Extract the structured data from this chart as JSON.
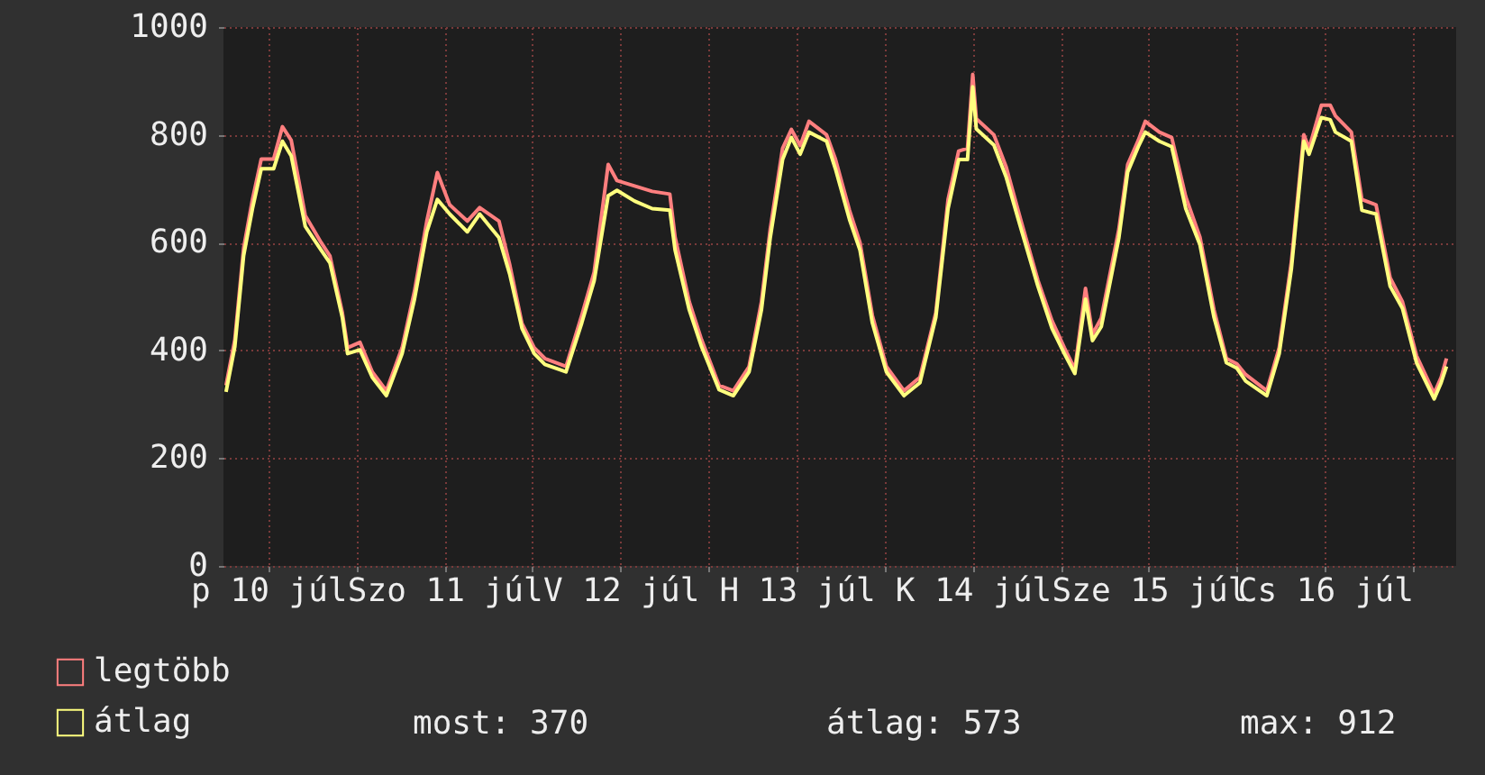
{
  "chart_data": {
    "type": "line",
    "x": [
      "--07-10T06:14",
      "--07-10T07:26",
      "--07-10T08:38",
      "--07-10T09:50",
      "--07-10T11:02",
      "--07-10T12:43",
      "--07-10T13:55",
      "--07-10T15:07",
      "--07-10T17:02",
      "--07-10T19:12",
      "--07-10T20:24",
      "--07-10T22:05",
      "--07-10T22:48",
      "--07-11T00:29",
      "--07-11T02:10",
      "--07-11T04:05",
      "--07-11T06:14",
      "--07-11T07:55",
      "--07-11T09:36",
      "--07-11T11:02",
      "--07-11T12:43",
      "--07-11T15:07",
      "--07-11T16:48",
      "--07-11T19:26",
      "--07-11T20:53",
      "--07-11T22:34",
      "--07-12T00:14",
      "--07-12T01:41",
      "--07-12T04:34",
      "--07-12T06:43",
      "--07-12T08:24",
      "--07-12T10:19",
      "--07-12T11:31",
      "--07-12T13:55",
      "--07-12T16:19",
      "--07-12T18:43",
      "--07-12T19:26",
      "--07-12T21:22",
      "--07-12T23:02",
      "--07-13T01:26",
      "--07-13T03:22",
      "--07-13T05:31",
      "--07-13T07:12",
      "--07-13T08:24",
      "--07-13T10:05",
      "--07-13T11:17",
      "--07-13T12:29",
      "--07-13T13:41",
      "--07-13T16:05",
      "--07-13T17:17",
      "--07-13T19:12",
      "--07-13T20:38",
      "--07-13T22:19",
      "--07-14T00:14",
      "--07-14T02:38",
      "--07-14T04:48",
      "--07-14T06:58",
      "--07-14T08:38",
      "--07-14T10:05",
      "--07-14T11:17",
      "--07-14T12:00",
      "--07-14T12:29",
      "--07-14T14:53",
      "--07-14T16:34",
      "--07-14T18:29",
      "--07-14T20:53",
      "--07-14T22:48",
      "--07-15T00:29",
      "--07-15T01:55",
      "--07-15T03:22",
      "--07-15T04:19",
      "--07-15T05:31",
      "--07-15T07:55",
      "--07-15T09:07",
      "--07-15T10:34",
      "--07-15T11:31",
      "--07-15T13:26",
      "--07-15T15:07",
      "--07-15T17:02",
      "--07-15T18:58",
      "--07-15T20:53",
      "--07-15T22:34",
      "--07-16T00:00",
      "--07-16T01:12",
      "--07-16T04:05",
      "--07-16T05:46",
      "--07-16T07:26",
      "--07-16T09:07",
      "--07-16T09:50",
      "--07-16T11:31",
      "--07-16T12:43",
      "--07-16T13:26",
      "--07-16T15:36",
      "--07-16T17:02",
      "--07-16T18:58",
      "--07-16T20:53",
      "--07-16T22:34",
      "--07-17T00:29",
      "--07-17T02:53",
      "--07-17T03:50",
      "--07-17T04:34"
    ],
    "series": [
      {
        "name": "legtöbb",
        "color": "#ff7f7f",
        "values": [
          335,
          420,
          590,
          680,
          755,
          755,
          815,
          790,
          650,
          600,
          575,
          470,
          405,
          415,
          360,
          325,
          405,
          510,
          640,
          730,
          670,
          640,
          665,
          640,
          560,
          450,
          405,
          385,
          370,
          465,
          545,
          745,
          715,
          705,
          695,
          690,
          610,
          490,
          420,
          335,
          325,
          370,
          490,
          625,
          775,
          810,
          780,
          825,
          800,
          755,
          660,
          600,
          465,
          370,
          325,
          350,
          470,
          680,
          770,
          775,
          912,
          830,
          800,
          740,
          645,
          530,
          455,
          405,
          365,
          515,
          430,
          460,
          625,
          745,
          790,
          825,
          805,
          795,
          685,
          610,
          475,
          385,
          375,
          355,
          325,
          405,
          565,
          800,
          775,
          855,
          855,
          835,
          805,
          680,
          670,
          535,
          490,
          390,
          320,
          350,
          385
        ]
      },
      {
        "name": "átlag",
        "color": "#ffff7f",
        "values": [
          323,
          407,
          576,
          663,
          737,
          737,
          788,
          761,
          630,
          586,
          562,
          461,
          394,
          401,
          350,
          316,
          394,
          495,
          620,
          680,
          653,
          620,
          653,
          609,
          542,
          441,
          394,
          374,
          360,
          451,
          529,
          687,
          697,
          677,
          663,
          660,
          586,
          475,
          407,
          327,
          316,
          360,
          475,
          609,
          754,
          795,
          764,
          805,
          788,
          737,
          643,
          586,
          451,
          360,
          316,
          340,
          461,
          663,
          754,
          754,
          889,
          811,
          781,
          721,
          630,
          519,
          441,
          394,
          357,
          495,
          418,
          444,
          609,
          731,
          778,
          805,
          788,
          778,
          663,
          596,
          461,
          377,
          367,
          343,
          316,
          394,
          552,
          788,
          764,
          832,
          828,
          805,
          788,
          660,
          653,
          519,
          478,
          377,
          310,
          340,
          370
        ]
      }
    ],
    "ylim": [
      0,
      1000
    ],
    "yticks": [
      0,
      200,
      400,
      600,
      800,
      1000
    ],
    "xlim": [
      "--07-10T05:53",
      "--07-17T05:53"
    ],
    "xticks": [
      {
        "value": "--07-10T12:00",
        "label": "p 10 júl"
      },
      {
        "value": "--07-11T00:00",
        "label": null
      },
      {
        "value": "--07-11T12:00",
        "label": "Szo 11 júl"
      },
      {
        "value": "--07-12T00:00",
        "label": null
      },
      {
        "value": "--07-12T12:00",
        "label": "V 12 júl"
      },
      {
        "value": "--07-13T00:00",
        "label": null
      },
      {
        "value": "--07-13T12:00",
        "label": "H 13 júl"
      },
      {
        "value": "--07-14T00:00",
        "label": null
      },
      {
        "value": "--07-14T12:00",
        "label": "K 14 júl"
      },
      {
        "value": "--07-15T00:00",
        "label": null
      },
      {
        "value": "--07-15T12:00",
        "label": "Sze 15 júl"
      },
      {
        "value": "--07-16T00:00",
        "label": null
      },
      {
        "value": "--07-16T12:00",
        "label": "Cs 16 júl"
      },
      {
        "value": "--07-17T00:00",
        "label": null
      }
    ],
    "grid": true,
    "legend": "bottom left",
    "line_style": "solid",
    "annotations": [
      "most: 370",
      "átlag: 573",
      "max: 912"
    ]
  }
}
